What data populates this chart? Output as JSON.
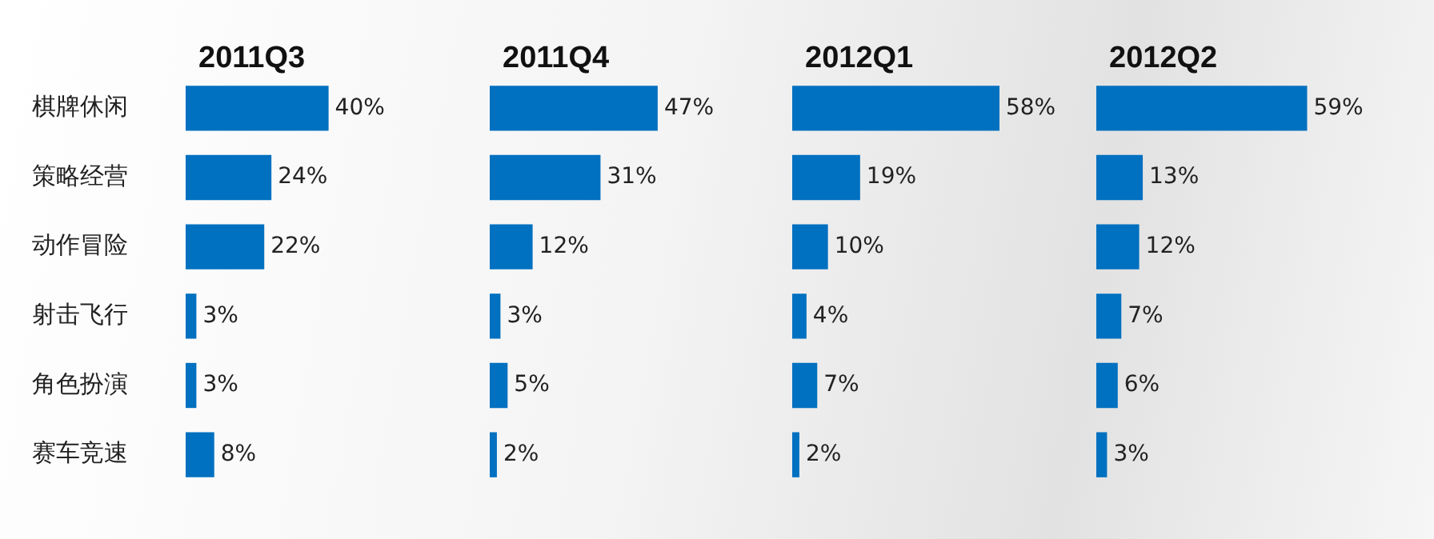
{
  "chart_data": [
    {
      "type": "bar",
      "orientation": "horizontal",
      "title": "2011Q3",
      "categories": [
        "棋牌休闲",
        "策略经营",
        "动作冒险",
        "射击飞行",
        "角色扮演",
        "赛车竞速"
      ],
      "values": [
        40,
        24,
        22,
        3,
        3,
        8
      ],
      "value_labels": [
        "40%",
        "24%",
        "22%",
        "3%",
        "3%",
        "8%"
      ],
      "color": "#0070c0",
      "tick_labels": "y",
      "grid": false,
      "legend": false
    },
    {
      "type": "bar",
      "orientation": "horizontal",
      "title": "2011Q4",
      "categories": [
        null,
        null,
        null,
        null,
        null,
        null
      ],
      "values": [
        47,
        31,
        12,
        3,
        5,
        2
      ],
      "value_labels": [
        "47%",
        "31%",
        "12%",
        "3%",
        "5%",
        "2%"
      ],
      "color": "#0070c0",
      "tick_labels": false,
      "grid": false,
      "legend": false
    },
    {
      "type": "bar",
      "orientation": "horizontal",
      "title": "2012Q1",
      "categories": [
        null,
        null,
        null,
        null,
        null,
        null
      ],
      "values": [
        58,
        19,
        10,
        4,
        7,
        2
      ],
      "value_labels": [
        "58%",
        "19%",
        "10%",
        "4%",
        "7%",
        "2%"
      ],
      "color": "#0070c0",
      "tick_labels": false,
      "grid": false,
      "legend": false
    },
    {
      "type": "bar",
      "orientation": "horizontal",
      "title": "2012Q2",
      "categories": [
        null,
        null,
        null,
        null,
        null,
        null
      ],
      "values": [
        59,
        13,
        12,
        7,
        6,
        3
      ],
      "value_labels": [
        "59%",
        "13%",
        "12%",
        "7%",
        "6%",
        "3%"
      ],
      "color": "#0070c0",
      "tick_labels": false,
      "grid": false,
      "legend": false
    }
  ]
}
